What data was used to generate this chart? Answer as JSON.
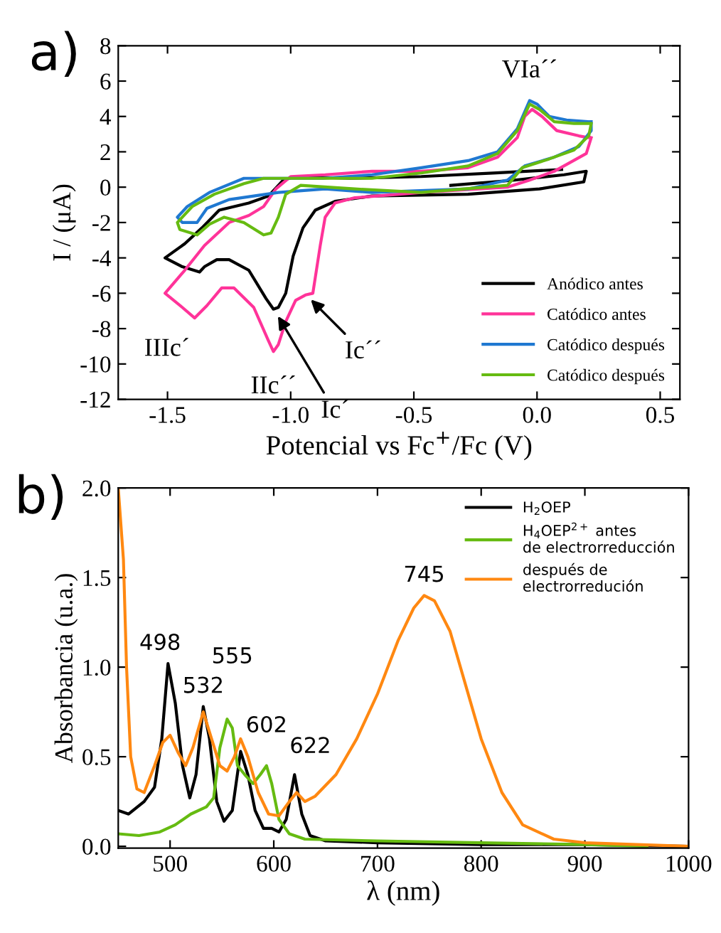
{
  "chart_data": [
    {
      "type": "line",
      "xlabel": "Potencial vs Fc$^{+}$/Fc (V)",
      "ylabel": "I / (μA)",
      "xlim": [
        -1.7,
        0.58
      ],
      "ylim": [
        -12,
        8
      ],
      "xticks": [
        {
          "value": -1.5,
          "label": "-1.5"
        },
        {
          "value": -1.0,
          "label": "-1.0"
        },
        {
          "value": -0.5,
          "label": "-0.5"
        },
        {
          "value": 0,
          "label": "0.0"
        },
        {
          "value": 0.5,
          "label": "0.5"
        }
      ],
      "yticks": [
        -12,
        -10,
        -8,
        -6,
        -4,
        -2,
        0,
        2,
        4,
        6,
        8
      ],
      "legend": "lower right",
      "grid": false,
      "marker": "none",
      "line_style": "solid",
      "annotations": [
        "a)",
        {
          "text": "VIa´´",
          "x": -0.03,
          "y": 5.0
        },
        {
          "text": "IIIc´",
          "x": -1.39,
          "y": -7.4
        },
        {
          "text": "IIc´´",
          "x": -1.07,
          "y": -9.3
        },
        {
          "text": "Ic´",
          "x": -1.06,
          "y": -7.1
        },
        {
          "text": "Ic´´",
          "x": -0.93,
          "y": -6.2
        }
      ],
      "series": [
        {
          "name": "Anódico antes",
          "color": "#000000",
          "x": [
            -0.35,
            -0.09,
            0.11,
            0.2,
            0.19,
            0.01,
            -0.28,
            -0.67,
            -0.82,
            -0.9,
            -0.95,
            -0.99,
            -1.02,
            -1.05,
            -1.07,
            -1.1,
            -1.17,
            -1.25,
            -1.3,
            -1.35,
            -1.37,
            -1.44,
            -1.51,
            -1.43,
            -1.36,
            -1.29,
            -1.17,
            -1.09,
            -1.03,
            -0.98,
            -0.76,
            -0.47,
            -0.18,
            0.1
          ],
          "values": [
            0.1,
            0.4,
            0.7,
            0.9,
            0.3,
            -0.1,
            -0.4,
            -0.5,
            -0.8,
            -1.3,
            -2.3,
            -3.9,
            -6.0,
            -6.8,
            -6.9,
            -6.3,
            -4.7,
            -4.1,
            -4.1,
            -4.5,
            -4.8,
            -4.5,
            -4.0,
            -3.2,
            -2.3,
            -1.3,
            -0.9,
            -0.5,
            0.4,
            0.6,
            0.5,
            0.6,
            0.8,
            1.0
          ]
        },
        {
          "name": "Catódico antes",
          "color": "#ff3399",
          "x": [
            0.22,
            0.2,
            0.07,
            -0.03,
            -0.12,
            -0.47,
            -0.74,
            -0.82,
            -0.86,
            -0.88,
            -0.91,
            -0.94,
            -0.98,
            -1.02,
            -1.05,
            -1.07,
            -1.09,
            -1.15,
            -1.23,
            -1.28,
            -1.34,
            -1.39,
            -1.44,
            -1.51,
            -1.43,
            -1.35,
            -1.25,
            -1.17,
            -1.11,
            -1.06,
            -1.0,
            -0.86,
            -0.67,
            -0.47,
            -0.28,
            -0.16,
            -0.08,
            -0.05,
            -0.02,
            0.02,
            0.08,
            0.17,
            0.21
          ],
          "values": [
            2.8,
            1.9,
            0.9,
            0.4,
            0.0,
            -0.3,
            -0.6,
            -0.9,
            -1.7,
            -3.3,
            -6.0,
            -6.1,
            -6.4,
            -7.6,
            -8.9,
            -9.3,
            -8.7,
            -6.8,
            -5.7,
            -5.7,
            -6.7,
            -7.4,
            -6.8,
            -6.0,
            -4.7,
            -3.3,
            -2.0,
            -1.6,
            -1.1,
            -0.1,
            0.6,
            0.7,
            0.9,
            0.9,
            1.1,
            1.7,
            2.8,
            4.0,
            4.4,
            4.0,
            3.2,
            2.9,
            2.8
          ]
        },
        {
          "name": "Catódico después",
          "color": "#1f78d1",
          "x": [
            0.22,
            0.22,
            0.17,
            0.07,
            -0.05,
            -0.12,
            -0.28,
            -0.67,
            -0.86,
            -1.05,
            -1.25,
            -1.34,
            -1.38,
            -1.44,
            -1.46,
            -1.42,
            -1.33,
            -1.19,
            -1.06,
            -0.87,
            -0.67,
            -0.47,
            -0.28,
            -0.16,
            -0.08,
            -0.03,
            0.0,
            0.05,
            0.12,
            0.21
          ],
          "values": [
            3.7,
            3.2,
            2.3,
            1.7,
            1.2,
            0.4,
            -0.1,
            -0.3,
            -0.1,
            -0.3,
            -0.7,
            -1.2,
            -2.0,
            -2.0,
            -1.7,
            -1.1,
            -0.3,
            0.5,
            0.5,
            0.5,
            0.7,
            1.1,
            1.5,
            2.0,
            3.3,
            4.9,
            4.7,
            4.0,
            3.8,
            3.7
          ]
        },
        {
          "name": "Catódico después",
          "color": "#66bb11",
          "x": [
            0.22,
            0.21,
            0.15,
            0.05,
            -0.06,
            -0.12,
            -0.47,
            -0.74,
            -0.96,
            -1.02,
            -1.05,
            -1.08,
            -1.11,
            -1.19,
            -1.27,
            -1.33,
            -1.38,
            -1.45,
            -1.46,
            -1.4,
            -1.31,
            -1.19,
            -1.11,
            -0.95,
            -0.67,
            -0.47,
            -0.28,
            -0.16,
            -0.08,
            -0.03,
            0.01,
            0.07,
            0.15,
            0.21
          ],
          "values": [
            3.6,
            2.9,
            2.1,
            1.6,
            1.1,
            0.1,
            -0.3,
            -0.1,
            0.1,
            -0.4,
            -1.7,
            -2.6,
            -2.7,
            -2.0,
            -1.7,
            -2.1,
            -2.7,
            -2.4,
            -2.0,
            -1.1,
            -0.4,
            0.2,
            0.5,
            0.5,
            0.5,
            0.8,
            1.2,
            1.9,
            3.2,
            4.7,
            4.4,
            3.7,
            3.6,
            3.6
          ]
        }
      ]
    },
    {
      "type": "line",
      "xlabel": "λ (nm)",
      "ylabel": "Absorbancia (u.a.)",
      "xlim": [
        450,
        1000
      ],
      "ylim": [
        -0.01,
        2.0
      ],
      "xticks": [
        500,
        600,
        700,
        800,
        900,
        1000
      ],
      "yticks": [
        {
          "value": 0,
          "label": "0.0"
        },
        {
          "value": 0.5,
          "label": "0.5"
        },
        {
          "value": 1.0,
          "label": "1.0"
        },
        {
          "value": 1.5,
          "label": "1.5"
        },
        {
          "value": 2.0,
          "label": "2.0"
        }
      ],
      "legend": "upper right",
      "grid": false,
      "marker": "none",
      "line_style": "solid",
      "annotations": [
        "b)",
        {
          "text": "498",
          "x": 498,
          "y": 1.02
        },
        {
          "text": "532",
          "x": 532,
          "y": 0.78
        },
        "555",
        {
          "text": "602",
          "x": 593,
          "y": 0.45
        },
        {
          "text": "622",
          "x": 620,
          "y": 0.4
        },
        {
          "text": "745",
          "x": 745,
          "y": 1.4
        }
      ],
      "series": [
        {
          "name": "H$_{2}$OEP",
          "color": "#000000",
          "x": [
            450,
            460,
            475,
            485,
            492,
            498,
            505,
            512,
            519,
            525,
            532,
            538,
            545,
            552,
            560,
            568,
            575,
            582,
            590,
            598,
            605,
            612,
            620,
            627,
            635,
            650,
            700,
            800,
            900,
            1000
          ],
          "values": [
            0.2,
            0.18,
            0.25,
            0.33,
            0.6,
            1.02,
            0.8,
            0.45,
            0.27,
            0.4,
            0.78,
            0.6,
            0.25,
            0.14,
            0.2,
            0.53,
            0.4,
            0.2,
            0.1,
            0.1,
            0.08,
            0.15,
            0.4,
            0.18,
            0.06,
            0.03,
            0.02,
            0.01,
            0.01,
            0.0
          ]
        },
        {
          "name": "H$_{4}$OEP$^{2+}$ antes\nde electrorreducción",
          "color": "#66bb11",
          "x": [
            450,
            470,
            490,
            505,
            520,
            535,
            542,
            548,
            555,
            560,
            565,
            572,
            580,
            587,
            593,
            598,
            605,
            615,
            630,
            700,
            800,
            900,
            960
          ],
          "values": [
            0.07,
            0.06,
            0.08,
            0.12,
            0.18,
            0.22,
            0.27,
            0.55,
            0.71,
            0.66,
            0.45,
            0.4,
            0.35,
            0.4,
            0.45,
            0.35,
            0.15,
            0.07,
            0.04,
            0.03,
            0.02,
            0.01,
            0.0
          ]
        },
        {
          "name": "después de\nelectrorredución",
          "color": "#ff8811",
          "x": [
            450,
            455,
            458,
            462,
            468,
            475,
            485,
            493,
            500,
            508,
            515,
            522,
            532,
            540,
            548,
            555,
            562,
            568,
            575,
            585,
            595,
            605,
            615,
            622,
            630,
            640,
            660,
            680,
            700,
            720,
            735,
            745,
            755,
            770,
            785,
            800,
            820,
            840,
            870,
            900,
            950,
            1000
          ],
          "values": [
            2.0,
            1.6,
            1.0,
            0.5,
            0.32,
            0.3,
            0.45,
            0.58,
            0.62,
            0.52,
            0.45,
            0.55,
            0.75,
            0.6,
            0.45,
            0.42,
            0.5,
            0.6,
            0.5,
            0.3,
            0.18,
            0.17,
            0.25,
            0.3,
            0.25,
            0.28,
            0.4,
            0.6,
            0.85,
            1.15,
            1.33,
            1.4,
            1.37,
            1.2,
            0.9,
            0.6,
            0.3,
            0.12,
            0.04,
            0.02,
            0.01,
            0.0
          ]
        }
      ]
    }
  ]
}
